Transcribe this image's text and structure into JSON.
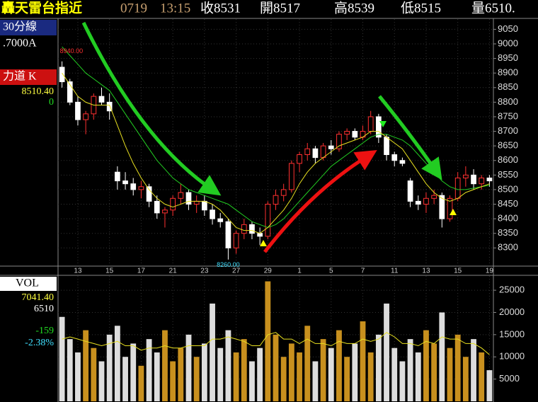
{
  "header": {
    "title": "轟天雷台指近",
    "date": "0719",
    "time": "13:15",
    "close": "收8531",
    "open": "開8517",
    "high": "高8539",
    "low": "低8515",
    "volume": "量6510."
  },
  "left_panel": {
    "period": "30分線",
    "code": ".7000A",
    "indicator": "力道 K",
    "indicator_value": "8510.40",
    "indicator_zero": "0",
    "vol_title": "VOL",
    "vol_value": "7041.40",
    "vol_last": "6510",
    "change": "-159",
    "change_pct": "-2.38%"
  },
  "chart_data": {
    "type": "candlestick",
    "annotations": [
      {
        "text": "8940.00",
        "index": 0
      },
      {
        "text": "8260.00",
        "index": 21
      }
    ],
    "categories": [
      null,
      null,
      "13",
      null,
      null,
      null,
      "15",
      null,
      null,
      null,
      "17",
      null,
      null,
      null,
      "21",
      null,
      null,
      null,
      "23",
      null,
      null,
      null,
      "27",
      null,
      null,
      null,
      "29",
      null,
      null,
      null,
      "1",
      null,
      null,
      null,
      "5",
      null,
      null,
      null,
      "7",
      null,
      null,
      null,
      "11",
      null,
      null,
      null,
      "13",
      null,
      null,
      null,
      "15",
      null,
      null,
      null,
      "19"
    ],
    "open": [
      8920,
      8870,
      8800,
      8740,
      8760,
      8820,
      8800,
      8560,
      8530,
      8520,
      8500,
      8510,
      8460,
      8420,
      8430,
      8470,
      8490,
      8450,
      8460,
      8430,
      8400,
      8390,
      8300,
      8350,
      8380,
      8350,
      8340,
      8450,
      8480,
      8500,
      8590,
      8620,
      8640,
      8610,
      8650,
      8640,
      8690,
      8700,
      8680,
      8700,
      8750,
      8680,
      8620,
      8600,
      8530,
      8460,
      8450,
      8470,
      8480,
      8400,
      8470,
      8540,
      8550,
      8520,
      8540
    ],
    "high": [
      8940,
      8880,
      8820,
      8770,
      8830,
      8850,
      8830,
      8580,
      8560,
      8540,
      8530,
      8520,
      8480,
      8440,
      8480,
      8520,
      8500,
      8480,
      8480,
      8450,
      8420,
      8400,
      8360,
      8400,
      8390,
      8370,
      8460,
      8500,
      8520,
      8600,
      8630,
      8660,
      8650,
      8660,
      8670,
      8700,
      8710,
      8710,
      8720,
      8770,
      8760,
      8690,
      8630,
      8610,
      8540,
      8480,
      8490,
      8500,
      8490,
      8480,
      8560,
      8580,
      8570,
      8550,
      8550
    ],
    "low": [
      8850,
      8790,
      8720,
      8690,
      8740,
      8790,
      8740,
      8500,
      8500,
      8480,
      8470,
      8440,
      8400,
      8370,
      8410,
      8450,
      8430,
      8420,
      8410,
      8380,
      8370,
      8260,
      8280,
      8330,
      8330,
      8310,
      8330,
      8430,
      8460,
      8490,
      8560,
      8600,
      8590,
      8600,
      8620,
      8630,
      8670,
      8670,
      8670,
      8690,
      8660,
      8600,
      8580,
      8580,
      8440,
      8430,
      8420,
      8450,
      8370,
      8390,
      8460,
      8510,
      8500,
      8500,
      8510
    ],
    "close": [
      8870,
      8800,
      8740,
      8760,
      8820,
      8800,
      8770,
      8530,
      8520,
      8500,
      8510,
      8460,
      8420,
      8430,
      8470,
      8490,
      8450,
      8460,
      8430,
      8400,
      8390,
      8300,
      8350,
      8380,
      8350,
      8340,
      8450,
      8480,
      8500,
      8590,
      8620,
      8640,
      8610,
      8650,
      8640,
      8690,
      8700,
      8680,
      8700,
      8750,
      8680,
      8620,
      8600,
      8590,
      8460,
      8450,
      8470,
      8480,
      8400,
      8470,
      8540,
      8550,
      8520,
      8540,
      8530
    ],
    "up_color": "#ff3030",
    "down_color": "#ffffff",
    "series": [
      {
        "color": "#22cc22",
        "values": [
          8990,
          8960,
          8930,
          8900,
          8880,
          8860,
          8840,
          8800,
          8760,
          8720,
          8680,
          8640,
          8600,
          8570,
          8540,
          8520,
          8500,
          8490,
          8480,
          8470,
          8460,
          8450,
          8430,
          8410,
          8390,
          8380,
          8370,
          8380,
          8400,
          8430,
          8460,
          8490,
          8520,
          8550,
          8580,
          8600,
          8620,
          8640,
          8660,
          8680,
          8690,
          8690,
          8680,
          8670,
          8650,
          8620,
          8590,
          8560,
          8530,
          8510,
          8500,
          8500,
          8505,
          8510,
          8515
        ]
      },
      {
        "color": "#e8e020",
        "values": [
          8900,
          8860,
          8820,
          8800,
          8790,
          8790,
          8790,
          8720,
          8650,
          8590,
          8540,
          8500,
          8470,
          8450,
          8440,
          8450,
          8460,
          8460,
          8460,
          8450,
          8430,
          8400,
          8370,
          8360,
          8360,
          8350,
          8370,
          8400,
          8430,
          8470,
          8520,
          8560,
          8590,
          8610,
          8630,
          8650,
          8660,
          8670,
          8680,
          8700,
          8700,
          8680,
          8660,
          8640,
          8600,
          8560,
          8520,
          8490,
          8470,
          8460,
          8470,
          8490,
          8500,
          8510,
          8520
        ]
      }
    ],
    "ylim": [
      8240,
      9085
    ],
    "yticks": [
      8300,
      8350,
      8400,
      8450,
      8500,
      8550,
      8600,
      8650,
      8700,
      8750,
      8800,
      8850,
      8900,
      8950,
      9000,
      9050
    ],
    "grid": true,
    "volume": [
      19000,
      14000,
      11000,
      16000,
      12000,
      9000,
      15000,
      17000,
      10000,
      13000,
      8000,
      14000,
      11000,
      16000,
      9000,
      12000,
      15000,
      10000,
      13000,
      22000,
      12000,
      16000,
      11000,
      14000,
      9000,
      12000,
      27000,
      15000,
      10000,
      13000,
      11000,
      17000,
      9000,
      14000,
      12000,
      16000,
      10000,
      13000,
      18000,
      11000,
      15000,
      22000,
      12000,
      9000,
      14000,
      11000,
      16000,
      13000,
      20000,
      12000,
      15000,
      10000,
      14000,
      11000,
      7000
    ],
    "volume_color": "#c8901e",
    "volume_ma": [
      14000,
      14500,
      14000,
      13500,
      13000,
      12500,
      13000,
      13500,
      12500,
      12500,
      11500,
      12000,
      12000,
      12500,
      12000,
      12000,
      12500,
      12500,
      12500,
      14000,
      14000,
      14500,
      14000,
      13500,
      12500,
      12500,
      15000,
      15500,
      14000,
      14000,
      13000,
      14000,
      13000,
      13000,
      12500,
      13500,
      13000,
      13000,
      14000,
      13500,
      14000,
      15500,
      14500,
      13000,
      13000,
      12500,
      13500,
      13000,
      14500,
      14000,
      14000,
      13000,
      13000,
      12000,
      10500
    ],
    "volume_ma_color": "#e8e020",
    "vol_ylim": [
      0,
      28200
    ],
    "vol_yticks": [
      5000,
      10000,
      15000,
      20000,
      25000
    ]
  }
}
